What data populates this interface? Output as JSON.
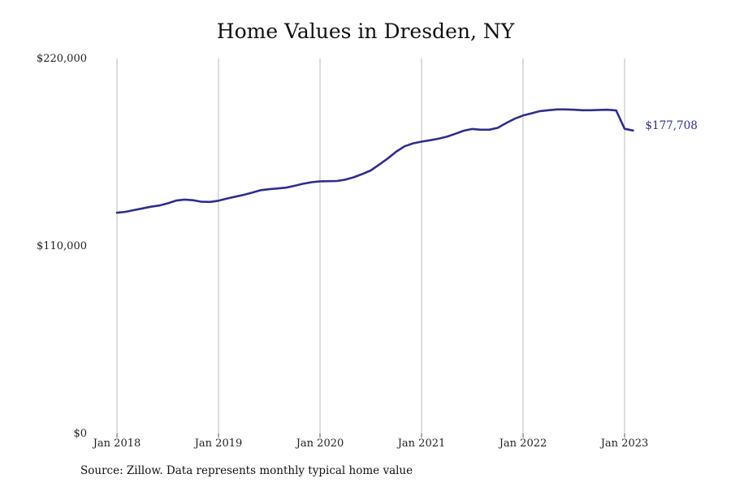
{
  "chart_data": {
    "type": "line",
    "title": "Home Values in Dresden, NY",
    "xlabel": "",
    "ylabel": "",
    "ylim": [
      0,
      220000
    ],
    "y_ticks": [
      {
        "value": 0,
        "label": "$0"
      },
      {
        "value": 110000,
        "label": "$110,000"
      },
      {
        "value": 220000,
        "label": "$220,000"
      }
    ],
    "x_ticks": [
      {
        "value": "2018-01",
        "label": "Jan 2018"
      },
      {
        "value": "2019-01",
        "label": "Jan 2019"
      },
      {
        "value": "2020-01",
        "label": "Jan 2020"
      },
      {
        "value": "2021-01",
        "label": "Jan 2021"
      },
      {
        "value": "2022-01",
        "label": "Jan 2022"
      },
      {
        "value": "2023-01",
        "label": "Jan 2023"
      }
    ],
    "grid": "vertical",
    "series": [
      {
        "name": "",
        "color": "#2e2e8a",
        "x": [
          "2018-01",
          "2018-02",
          "2018-03",
          "2018-04",
          "2018-05",
          "2018-06",
          "2018-07",
          "2018-08",
          "2018-09",
          "2018-10",
          "2018-11",
          "2018-12",
          "2019-01",
          "2019-02",
          "2019-03",
          "2019-04",
          "2019-05",
          "2019-06",
          "2019-07",
          "2019-08",
          "2019-09",
          "2019-10",
          "2019-11",
          "2019-12",
          "2020-01",
          "2020-02",
          "2020-03",
          "2020-04",
          "2020-05",
          "2020-06",
          "2020-07",
          "2020-08",
          "2020-09",
          "2020-10",
          "2020-11",
          "2020-12",
          "2021-01",
          "2021-02",
          "2021-03",
          "2021-04",
          "2021-05",
          "2021-06",
          "2021-07",
          "2021-08",
          "2021-09",
          "2021-10",
          "2021-11",
          "2021-12",
          "2022-01",
          "2022-02",
          "2022-03",
          "2022-04",
          "2022-05",
          "2022-06",
          "2022-07",
          "2022-08",
          "2022-09",
          "2022-10",
          "2022-11",
          "2022-12",
          "2023-01",
          "2023-02"
        ],
        "y": [
          129500,
          130000,
          131000,
          132000,
          133000,
          133700,
          135000,
          136600,
          137200,
          136800,
          135900,
          135800,
          136500,
          137800,
          138900,
          140000,
          141300,
          142700,
          143300,
          143700,
          144200,
          145300,
          146500,
          147400,
          147900,
          148000,
          148100,
          148900,
          150300,
          152200,
          154300,
          157700,
          161300,
          165300,
          168500,
          170200,
          171200,
          172000,
          172900,
          174100,
          175800,
          177600,
          178600,
          178200,
          178200,
          179300,
          182100,
          184600,
          186500,
          187800,
          189100,
          189600,
          190100,
          190100,
          189900,
          189600,
          189600,
          189800,
          189900,
          189500,
          178700,
          177708
        ]
      }
    ],
    "end_label": "$177,708"
  },
  "source_note": "Source: Zillow. Data represents monthly typical home value"
}
